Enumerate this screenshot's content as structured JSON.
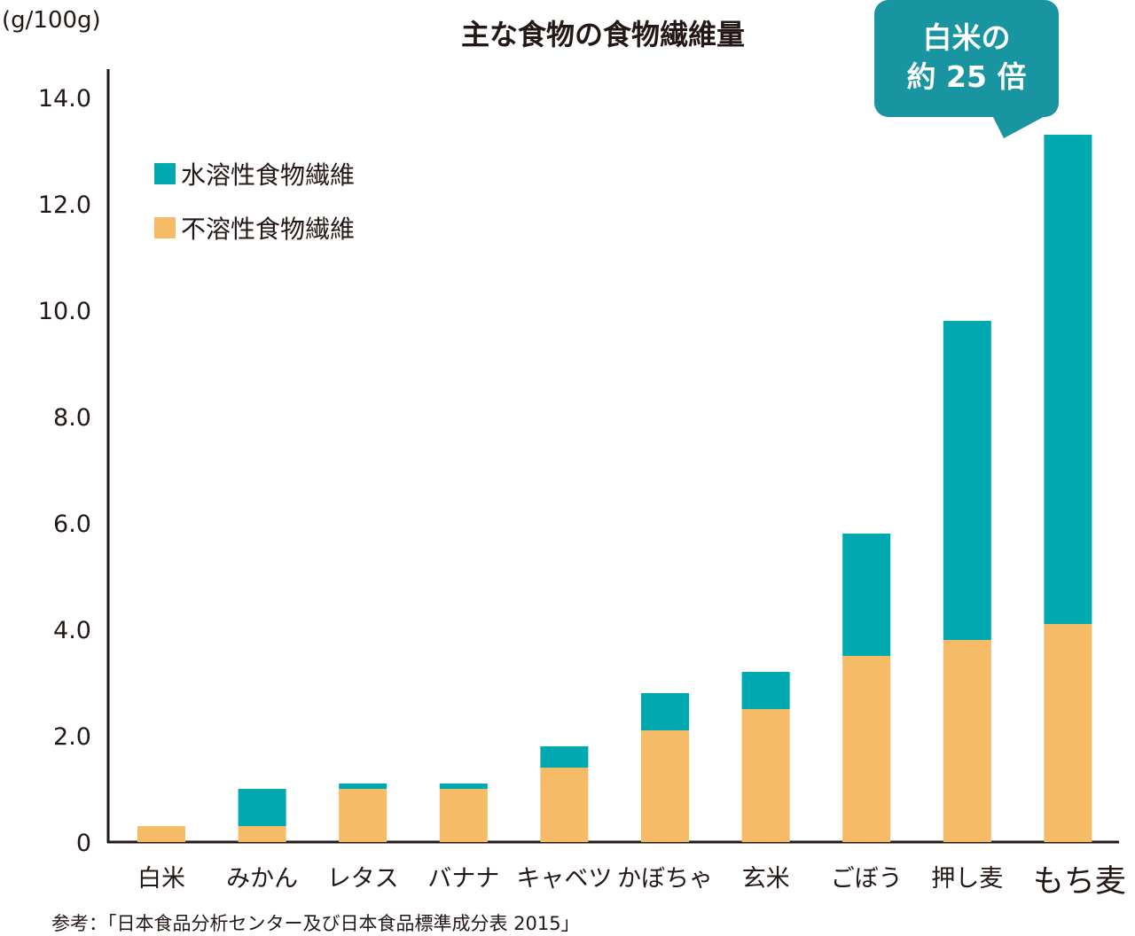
{
  "chart_data": {
    "type": "bar",
    "stacked": true,
    "title": "主な食物の食物繊維量",
    "y_unit": "(g/100g)",
    "ylim": [
      0,
      14
    ],
    "yticks": [
      "0",
      "2.0",
      "4.0",
      "6.0",
      "8.0",
      "10.0",
      "12.0",
      "14.0"
    ],
    "grid": false,
    "legend_position": "top-left",
    "categories": [
      "白米",
      "みかん",
      "レタス",
      "バナナ",
      "キャベツ",
      "かぼちゃ",
      "玄米",
      "ごぼう",
      "押し麦",
      "もち麦"
    ],
    "series": [
      {
        "name": "不溶性食物繊維",
        "color": "#f6bb66",
        "values": [
          0.3,
          0.3,
          1.0,
          1.0,
          1.4,
          2.1,
          2.5,
          3.5,
          3.8,
          4.1
        ]
      },
      {
        "name": "水溶性食物繊維",
        "color": "#00a8b0",
        "values": [
          0.0,
          0.7,
          0.1,
          0.1,
          0.4,
          0.7,
          0.7,
          2.3,
          6.0,
          9.2
        ]
      }
    ],
    "callout": {
      "line1": "白米の",
      "line2": "約 25 倍"
    },
    "source": "参考：「日本食品分析センター及び日本食品標準成分表 2015」"
  }
}
